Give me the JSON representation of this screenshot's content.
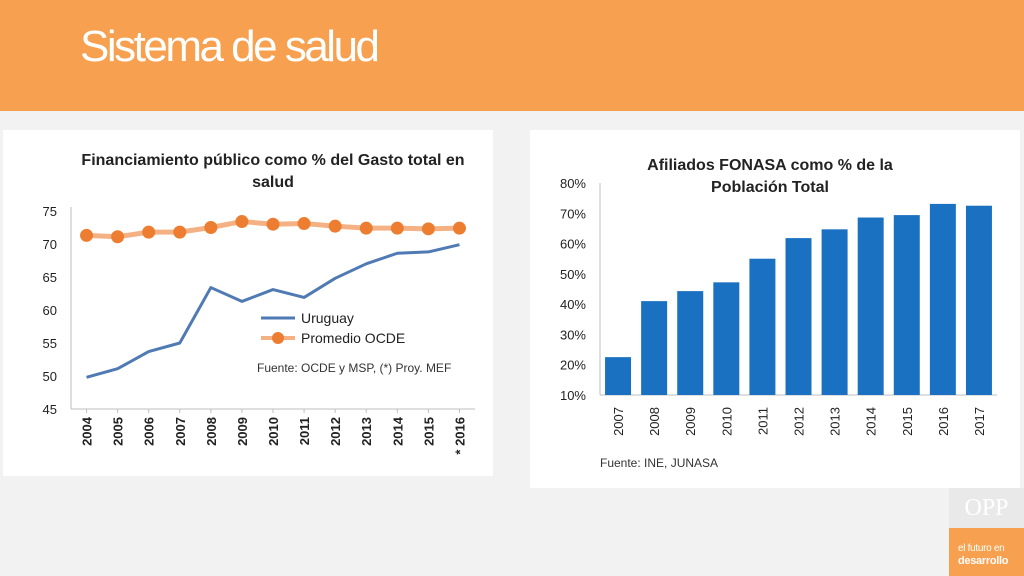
{
  "header": {
    "title": "Sistema de salud"
  },
  "logo": {
    "name": "OPP",
    "line1": "el futuro en",
    "line2": "desarrollo"
  },
  "chart_data": [
    {
      "type": "line",
      "title": "Financiamiento público como % del Gasto total en salud",
      "x": [
        "2004",
        "2005",
        "2006",
        "2007",
        "2008",
        "2009",
        "2010",
        "2011",
        "2012",
        "2013",
        "2014",
        "2015",
        "* 2016"
      ],
      "ylim": [
        45,
        75
      ],
      "yticks": [
        45,
        50,
        55,
        60,
        65,
        70,
        75
      ],
      "series": [
        {
          "name": "Uruguay",
          "color": "#4f7ab4",
          "values": [
            49.8,
            51.1,
            53.7,
            55.0,
            63.4,
            61.3,
            63.1,
            61.9,
            64.8,
            67.0,
            68.6,
            68.8,
            69.9
          ]
        },
        {
          "name": "Promedio OCDE",
          "color": "#ed7d31",
          "values": [
            71.3,
            71.1,
            71.8,
            71.8,
            72.5,
            73.4,
            73.0,
            73.1,
            72.7,
            72.4,
            72.4,
            72.3,
            72.4
          ]
        }
      ],
      "legend_position": "right",
      "annotation": "Fuente: OCDE y MSP, (*) Proy. MEF"
    },
    {
      "type": "bar",
      "title": "Afiliados FONASA como % de la Población Total",
      "categories": [
        "2007",
        "2008",
        "2009",
        "2010",
        "2011",
        "2012",
        "2013",
        "2014",
        "2015",
        "2016",
        "2017"
      ],
      "values": [
        22.5,
        41,
        44.3,
        47.2,
        55,
        61.8,
        64.7,
        68.6,
        69.4,
        73.1,
        72.5
      ],
      "ylim": [
        10,
        80
      ],
      "yticks": [
        "10%",
        "20%",
        "30%",
        "40%",
        "50%",
        "60%",
        "70%",
        "80%"
      ],
      "color": "#1a70c1",
      "annotation": "Fuente: INE, JUNASA"
    }
  ]
}
